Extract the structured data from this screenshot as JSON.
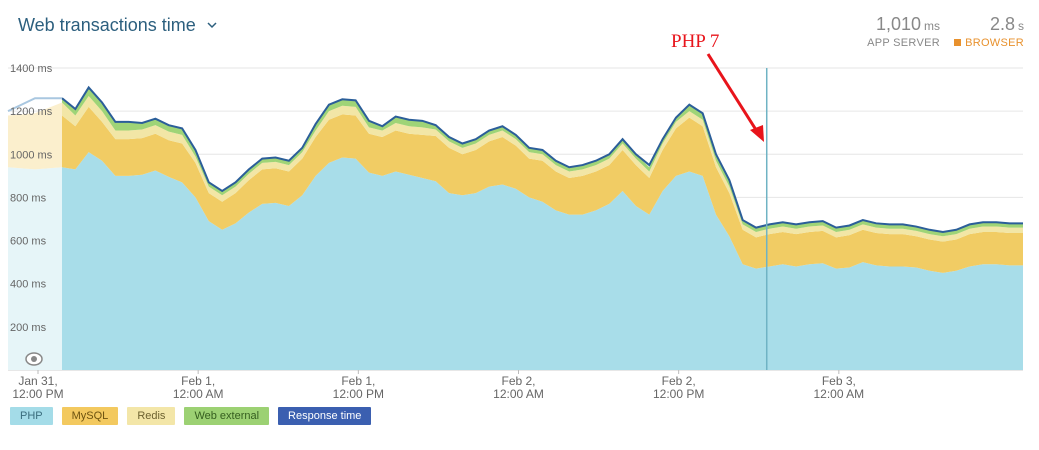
{
  "header": {
    "title": "Web transactions time"
  },
  "metrics": {
    "app_server": {
      "value": "1,010",
      "unit": "ms",
      "label": "APP SERVER"
    },
    "browser": {
      "value": "2.8",
      "unit": "s",
      "label": "BROWSER"
    }
  },
  "annotation": {
    "label": "PHP 7",
    "color": "#e8141b"
  },
  "legend_items": [
    {
      "label": "PHP",
      "color": "#a4dce8",
      "text": "#3a6d7d"
    },
    {
      "label": "MySQL",
      "color": "#f3c95f",
      "text": "#6d5310"
    },
    {
      "label": "Redis",
      "color": "#f3e6a8",
      "text": "#6d6230"
    },
    {
      "label": "Web external",
      "color": "#9cd173",
      "text": "#355e1f"
    },
    {
      "label": "Response time",
      "color": "#3b5fb0",
      "text": "#ffffff"
    }
  ],
  "chart_data": {
    "type": "area",
    "stacked": true,
    "ylim": [
      0,
      1400
    ],
    "yticks": [
      200,
      400,
      600,
      800,
      1000,
      1200,
      1400
    ],
    "ytick_labels": [
      "200 ms",
      "400 ms",
      "600 ms",
      "800 ms",
      "1000 ms",
      "1200 ms",
      "1400 ms"
    ],
    "xtick_labels": [
      [
        "Jan 31,",
        "12:00 PM"
      ],
      [
        "Feb 1,",
        "12:00 AM"
      ],
      [
        "Feb 1,",
        "12:00 PM"
      ],
      [
        "Feb 2,",
        "12:00 AM"
      ],
      [
        "Feb 2,",
        "12:00 PM"
      ],
      [
        "Feb 3,",
        "12:00 AM"
      ]
    ],
    "xtick_hours": [
      0,
      12,
      24,
      36,
      48,
      60
    ],
    "x_hours": [
      0,
      1,
      2,
      3,
      4,
      5,
      6,
      7,
      8,
      9,
      10,
      11,
      12,
      13,
      14,
      15,
      16,
      17,
      18,
      19,
      20,
      21,
      22,
      23,
      24,
      25,
      26,
      27,
      28,
      29,
      30,
      31,
      32,
      33,
      34,
      35,
      36,
      37,
      38,
      39,
      40,
      41,
      42,
      43,
      44,
      45,
      46,
      47,
      48,
      49,
      50,
      51,
      52,
      53,
      54,
      55,
      56,
      57,
      58,
      59,
      60,
      61,
      62,
      63,
      64,
      65,
      66,
      67,
      68,
      69,
      70,
      71,
      72
    ],
    "php_split_hour": 52.8,
    "grid": true,
    "series": [
      {
        "name": "PHP",
        "color": "#a8dde9",
        "values": [
          940,
          930,
          1010,
          970,
          900,
          900,
          905,
          925,
          895,
          870,
          800,
          690,
          650,
          680,
          730,
          770,
          775,
          760,
          810,
          900,
          960,
          985,
          980,
          915,
          900,
          920,
          905,
          890,
          875,
          820,
          810,
          820,
          850,
          860,
          840,
          800,
          780,
          740,
          720,
          720,
          740,
          770,
          830,
          760,
          720,
          830,
          900,
          920,
          900,
          720,
          620,
          490,
          470,
          480,
          490,
          480,
          490,
          495,
          470,
          475,
          500,
          485,
          480,
          480,
          475,
          460,
          450,
          460,
          480,
          490,
          490,
          485,
          485
        ]
      },
      {
        "name": "MySQL",
        "color": "#f1cc64",
        "values": [
          240,
          200,
          210,
          180,
          170,
          170,
          170,
          170,
          170,
          180,
          160,
          130,
          130,
          140,
          150,
          160,
          160,
          160,
          170,
          180,
          200,
          200,
          200,
          180,
          180,
          190,
          190,
          200,
          210,
          210,
          190,
          200,
          210,
          220,
          200,
          180,
          190,
          180,
          170,
          180,
          180,
          180,
          190,
          190,
          170,
          190,
          220,
          250,
          230,
          220,
          200,
          160,
          145,
          150,
          150,
          150,
          150,
          150,
          145,
          150,
          150,
          150,
          150,
          150,
          145,
          145,
          145,
          145,
          150,
          150,
          150,
          150,
          150
        ]
      },
      {
        "name": "Redis",
        "color": "#f2e6a6",
        "values": [
          60,
          50,
          50,
          50,
          40,
          40,
          40,
          40,
          40,
          40,
          30,
          30,
          30,
          30,
          30,
          30,
          30,
          30,
          30,
          30,
          40,
          40,
          40,
          30,
          30,
          35,
          35,
          35,
          30,
          30,
          30,
          30,
          30,
          30,
          30,
          30,
          30,
          30,
          30,
          30,
          30,
          30,
          30,
          30,
          30,
          30,
          30,
          30,
          30,
          30,
          30,
          25,
          25,
          25,
          25,
          25,
          25,
          25,
          25,
          25,
          25,
          25,
          25,
          25,
          25,
          25,
          25,
          25,
          25,
          25,
          25,
          25,
          25
        ]
      },
      {
        "name": "Web external",
        "color": "#9fd477",
        "values": [
          20,
          30,
          40,
          40,
          40,
          40,
          30,
          30,
          30,
          30,
          30,
          20,
          20,
          20,
          20,
          20,
          20,
          20,
          20,
          30,
          30,
          30,
          30,
          30,
          20,
          30,
          30,
          30,
          20,
          20,
          20,
          20,
          20,
          20,
          20,
          20,
          20,
          20,
          20,
          20,
          20,
          20,
          20,
          20,
          20,
          20,
          20,
          30,
          30,
          30,
          30,
          20,
          20,
          20,
          20,
          20,
          20,
          20,
          20,
          20,
          20,
          20,
          20,
          20,
          20,
          20,
          20,
          20,
          20,
          20,
          20,
          20,
          20
        ]
      }
    ],
    "response_time": {
      "name": "Response time",
      "color": "#2b5e99",
      "values": [
        1260,
        1210,
        1310,
        1240,
        1150,
        1150,
        1145,
        1165,
        1135,
        1120,
        1020,
        870,
        830,
        870,
        930,
        980,
        985,
        970,
        1030,
        1140,
        1230,
        1255,
        1250,
        1155,
        1130,
        1175,
        1160,
        1155,
        1135,
        1080,
        1050,
        1070,
        1110,
        1130,
        1090,
        1030,
        1020,
        970,
        940,
        950,
        970,
        1000,
        1070,
        1000,
        950,
        1070,
        1170,
        1230,
        1190,
        1000,
        880,
        695,
        660,
        675,
        685,
        675,
        685,
        690,
        660,
        670,
        695,
        680,
        675,
        675,
        665,
        650,
        640,
        650,
        675,
        685,
        685,
        680,
        680
      ]
    },
    "prefix": {
      "php_x_end": 60,
      "php_values": [
        940,
        930,
        940
      ],
      "mysql_values": [
        240,
        260,
        300
      ]
    }
  }
}
